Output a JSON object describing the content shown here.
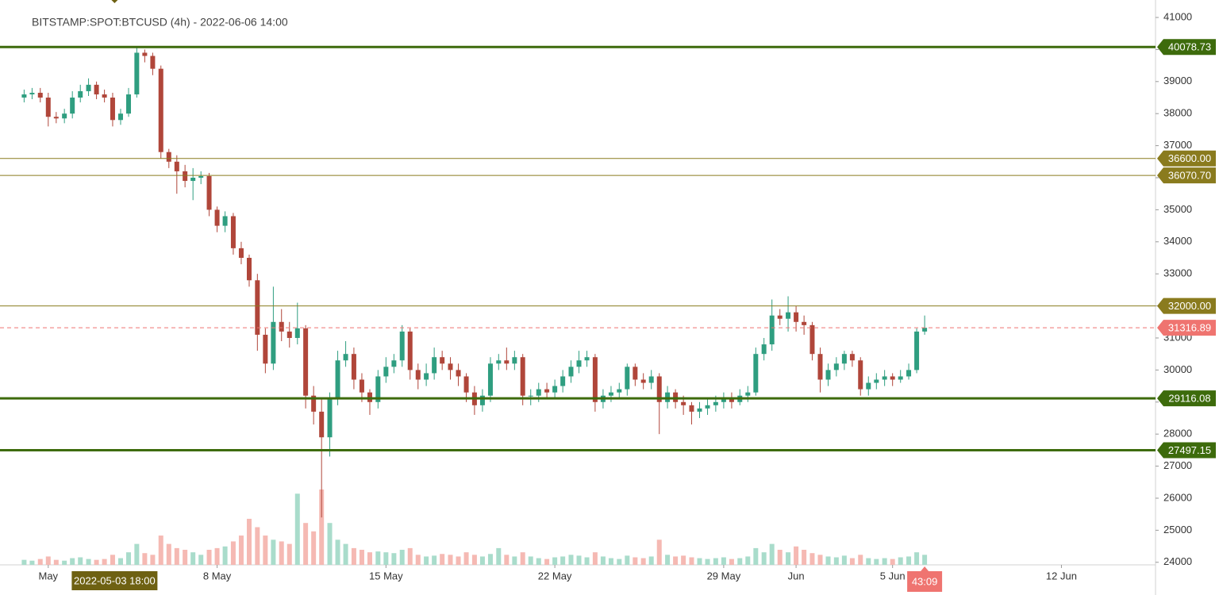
{
  "chart_data": {
    "type": "candlestick",
    "title": "BITSTAMP:SPOT:BTCUSD (4h) - 2022-06-06 14:00",
    "x": [
      -1,
      -0.67,
      -0.33,
      0,
      0.33,
      0.67,
      1,
      1.33,
      1.67,
      2,
      2.33,
      2.67,
      3,
      3.33,
      3.67,
      4,
      4.33,
      4.67,
      5,
      5.33,
      5.67,
      6,
      6.33,
      6.67,
      7,
      7.33,
      7.67,
      8,
      8.33,
      8.67,
      9,
      9.33,
      9.67,
      10,
      10.33,
      10.67,
      11,
      11.33,
      11.67,
      12,
      12.33,
      12.67,
      13,
      13.33,
      13.67,
      14,
      14.33,
      14.67,
      15,
      15.33,
      15.67,
      16,
      16.33,
      16.67,
      17,
      17.33,
      17.67,
      18,
      18.33,
      18.67,
      19,
      19.33,
      19.67,
      20,
      20.33,
      20.67,
      21,
      21.33,
      21.67,
      22,
      22.33,
      22.67,
      23,
      23.33,
      23.67,
      24,
      24.33,
      24.67,
      25,
      25.33,
      25.67,
      26,
      26.33,
      26.67,
      27,
      27.33,
      27.67,
      28,
      28.33,
      28.67,
      29,
      29.33,
      29.67,
      30,
      30.33,
      30.67,
      31,
      31.33,
      31.67,
      32,
      32.33,
      32.67,
      33,
      33.33,
      33.67,
      34,
      34.33,
      34.67,
      35,
      35.33,
      35.67,
      36,
      36.33
    ],
    "open": [
      38500,
      38600,
      38650,
      38500,
      37900,
      37850,
      38000,
      38500,
      38700,
      38900,
      38600,
      38500,
      37800,
      38000,
      38600,
      39900,
      39800,
      39400,
      36800,
      36500,
      36200,
      35900,
      36000,
      36050,
      35000,
      34500,
      34800,
      33800,
      33500,
      32800,
      31100,
      30200,
      31500,
      31200,
      31000,
      31300,
      29200,
      28700,
      27900,
      29100,
      30300,
      30500,
      29700,
      29300,
      29000,
      29800,
      30100,
      30300,
      31200,
      30000,
      29700,
      29900,
      30400,
      30200,
      30000,
      29800,
      29300,
      28900,
      29200,
      30200,
      30300,
      30200,
      30400,
      29200,
      29200,
      29400,
      29300,
      29500,
      29800,
      30100,
      30300,
      30400,
      29000,
      29200,
      29300,
      29400,
      30100,
      29700,
      29600,
      29800,
      29000,
      29300,
      29000,
      28900,
      28700,
      28800,
      28900,
      29000,
      29100,
      29000,
      29200,
      29300,
      30500,
      30800,
      31700,
      31600,
      31800,
      31500,
      31400,
      30500,
      29700,
      30000,
      30200,
      30500,
      30300,
      29400,
      29600,
      29700,
      29800,
      29700,
      29800,
      30000,
      31200
    ],
    "high": [
      38750,
      38800,
      38800,
      38650,
      38050,
      38150,
      38700,
      38900,
      39100,
      39000,
      38750,
      38650,
      38150,
      38800,
      40079,
      40000,
      39900,
      39500,
      36900,
      36700,
      36400,
      36300,
      36200,
      36150,
      35100,
      34950,
      34900,
      34000,
      33600,
      33000,
      31300,
      32600,
      31900,
      31500,
      32100,
      31400,
      29500,
      29100,
      29300,
      30600,
      30900,
      30700,
      29900,
      29400,
      30000,
      30400,
      30500,
      31400,
      31300,
      30200,
      30200,
      30700,
      30600,
      30400,
      30200,
      29900,
      29500,
      29400,
      30400,
      30500,
      30700,
      30600,
      30500,
      29400,
      29600,
      29600,
      29700,
      30000,
      30300,
      30600,
      30600,
      30500,
      29400,
      29500,
      29600,
      30200,
      30200,
      29900,
      30000,
      29900,
      29500,
      29400,
      29200,
      29000,
      29000,
      29100,
      29200,
      29300,
      29300,
      29400,
      29500,
      30700,
      31000,
      32200,
      31900,
      32300,
      32000,
      31700,
      31500,
      30700,
      30200,
      30400,
      30600,
      30600,
      30400,
      29800,
      29900,
      30000,
      29900,
      30000,
      30200,
      31300,
      31700
    ],
    "low": [
      38350,
      38450,
      38350,
      37600,
      37700,
      37700,
      37850,
      38350,
      38550,
      38450,
      38350,
      37600,
      37650,
      37900,
      38500,
      39600,
      39200,
      36600,
      36300,
      35500,
      35700,
      35300,
      35800,
      34800,
      34300,
      34300,
      33600,
      33300,
      32600,
      30600,
      29900,
      30000,
      30900,
      30700,
      30800,
      28800,
      28300,
      25400,
      27300,
      28900,
      30100,
      29400,
      29000,
      28600,
      28800,
      29600,
      29900,
      30100,
      29700,
      29400,
      29500,
      29700,
      30000,
      29700,
      29500,
      29000,
      28600,
      28700,
      29000,
      30000,
      30000,
      30000,
      28900,
      28900,
      29000,
      29100,
      29100,
      29300,
      29600,
      29900,
      30100,
      28700,
      28800,
      29000,
      29100,
      29200,
      29500,
      29400,
      29400,
      28000,
      28800,
      28800,
      28600,
      28300,
      28500,
      28600,
      28700,
      28800,
      28800,
      28900,
      29000,
      29200,
      30300,
      30600,
      31400,
      31200,
      31200,
      31100,
      30300,
      29300,
      29500,
      29800,
      30000,
      30100,
      29200,
      29200,
      29400,
      29500,
      29500,
      29600,
      29700,
      29900,
      31100
    ],
    "close": [
      38600,
      38650,
      38500,
      37900,
      37850,
      38000,
      38500,
      38700,
      38900,
      38600,
      38500,
      37800,
      38000,
      38600,
      39900,
      39800,
      39400,
      36800,
      36500,
      36200,
      35900,
      36000,
      36050,
      35000,
      34500,
      34800,
      33800,
      33500,
      32800,
      31100,
      30200,
      31500,
      31200,
      31000,
      31300,
      29200,
      28700,
      27900,
      29100,
      30300,
      30500,
      29700,
      29300,
      29000,
      29800,
      30100,
      30300,
      31200,
      30000,
      29700,
      29900,
      30400,
      30200,
      30000,
      29800,
      29300,
      28900,
      29200,
      30200,
      30300,
      30200,
      30400,
      29200,
      29200,
      29400,
      29300,
      29500,
      29800,
      30100,
      30300,
      30400,
      29000,
      29200,
      29300,
      29400,
      30100,
      29700,
      29600,
      29800,
      29000,
      29300,
      29000,
      28900,
      28700,
      28800,
      28900,
      29000,
      29100,
      29000,
      29200,
      29300,
      30500,
      30800,
      31700,
      31600,
      31800,
      31500,
      31400,
      30500,
      29700,
      30000,
      30200,
      30500,
      30300,
      29400,
      29600,
      29700,
      29800,
      29700,
      29800,
      30000,
      31200,
      31317
    ],
    "volume": [
      600,
      500,
      700,
      1000,
      600,
      500,
      800,
      900,
      700,
      600,
      700,
      1200,
      800,
      1500,
      2500,
      1400,
      1200,
      3500,
      2500,
      2000,
      1800,
      1500,
      1200,
      1800,
      2000,
      2200,
      2800,
      3500,
      5500,
      4500,
      3500,
      3000,
      2800,
      2500,
      8500,
      5000,
      4000,
      9000,
      5000,
      3000,
      2500,
      2000,
      1800,
      1500,
      1600,
      1500,
      1400,
      1800,
      2000,
      1200,
      1000,
      1100,
      1300,
      1200,
      1000,
      1500,
      1200,
      1000,
      1300,
      2000,
      1200,
      1000,
      1500,
      1000,
      800,
      700,
      900,
      1000,
      1200,
      1100,
      900,
      1500,
      1000,
      800,
      700,
      1100,
      900,
      800,
      1000,
      3000,
      1200,
      1000,
      1100,
      900,
      800,
      700,
      800,
      900,
      700,
      800,
      1000,
      2000,
      1500,
      2500,
      1800,
      1500,
      2200,
      1800,
      1400,
      1200,
      1000,
      900,
      1100,
      800,
      1200,
      800,
      700,
      800,
      700,
      900,
      1000,
      1500,
      1200
    ],
    "up_color": "#2f9e80",
    "down_color": "#b0463a",
    "volume_up_color": "#a9dccb",
    "volume_down_color": "#f5b9b3",
    "ylim": [
      23920,
      41545
    ],
    "yticks": [
      24000,
      25000,
      26000,
      27000,
      28000,
      29000,
      30000,
      31000,
      32000,
      33000,
      34000,
      35000,
      36000,
      37000,
      38000,
      39000,
      40000,
      41000
    ],
    "xlim": [
      -2.0,
      45.9
    ],
    "xticks": [
      {
        "value": 0,
        "label": "May"
      },
      {
        "value": 7,
        "label": "8 May"
      },
      {
        "value": 14,
        "label": "15 May"
      },
      {
        "value": 21,
        "label": "22 May"
      },
      {
        "value": 28,
        "label": "29 May"
      },
      {
        "value": 31,
        "label": "Jun"
      },
      {
        "value": 35,
        "label": "5 Jun"
      },
      {
        "value": 42,
        "label": "12 Jun"
      }
    ],
    "grid": false,
    "levels": [
      {
        "value": 40078.73,
        "color": "#3d6b0c",
        "width": 3,
        "dash": false
      },
      {
        "value": 36600,
        "label": "36600.00",
        "color": "#8a7b1e",
        "width": 1,
        "dash": false
      },
      {
        "value": 36070.7,
        "label": "36070.70",
        "color": "#8a7b1e",
        "width": 1,
        "dash": false
      },
      {
        "value": 32000,
        "label": "32000.00",
        "color": "#8a7b1e",
        "width": 1,
        "dash": false
      },
      {
        "value": 31316.89,
        "color": "#ef7470",
        "width": 1,
        "dash": true
      },
      {
        "value": 29116.08,
        "color": "#3d6b0c",
        "width": 3,
        "dash": false
      },
      {
        "value": 27497.15,
        "color": "#3d6b0c",
        "width": 3,
        "dash": false
      }
    ],
    "crosshair": {
      "value": 2.75,
      "label": "2022-05-03 18:00",
      "color": "#6e6112"
    },
    "countdown": {
      "label": "43:09",
      "color": "#ef7470"
    }
  }
}
